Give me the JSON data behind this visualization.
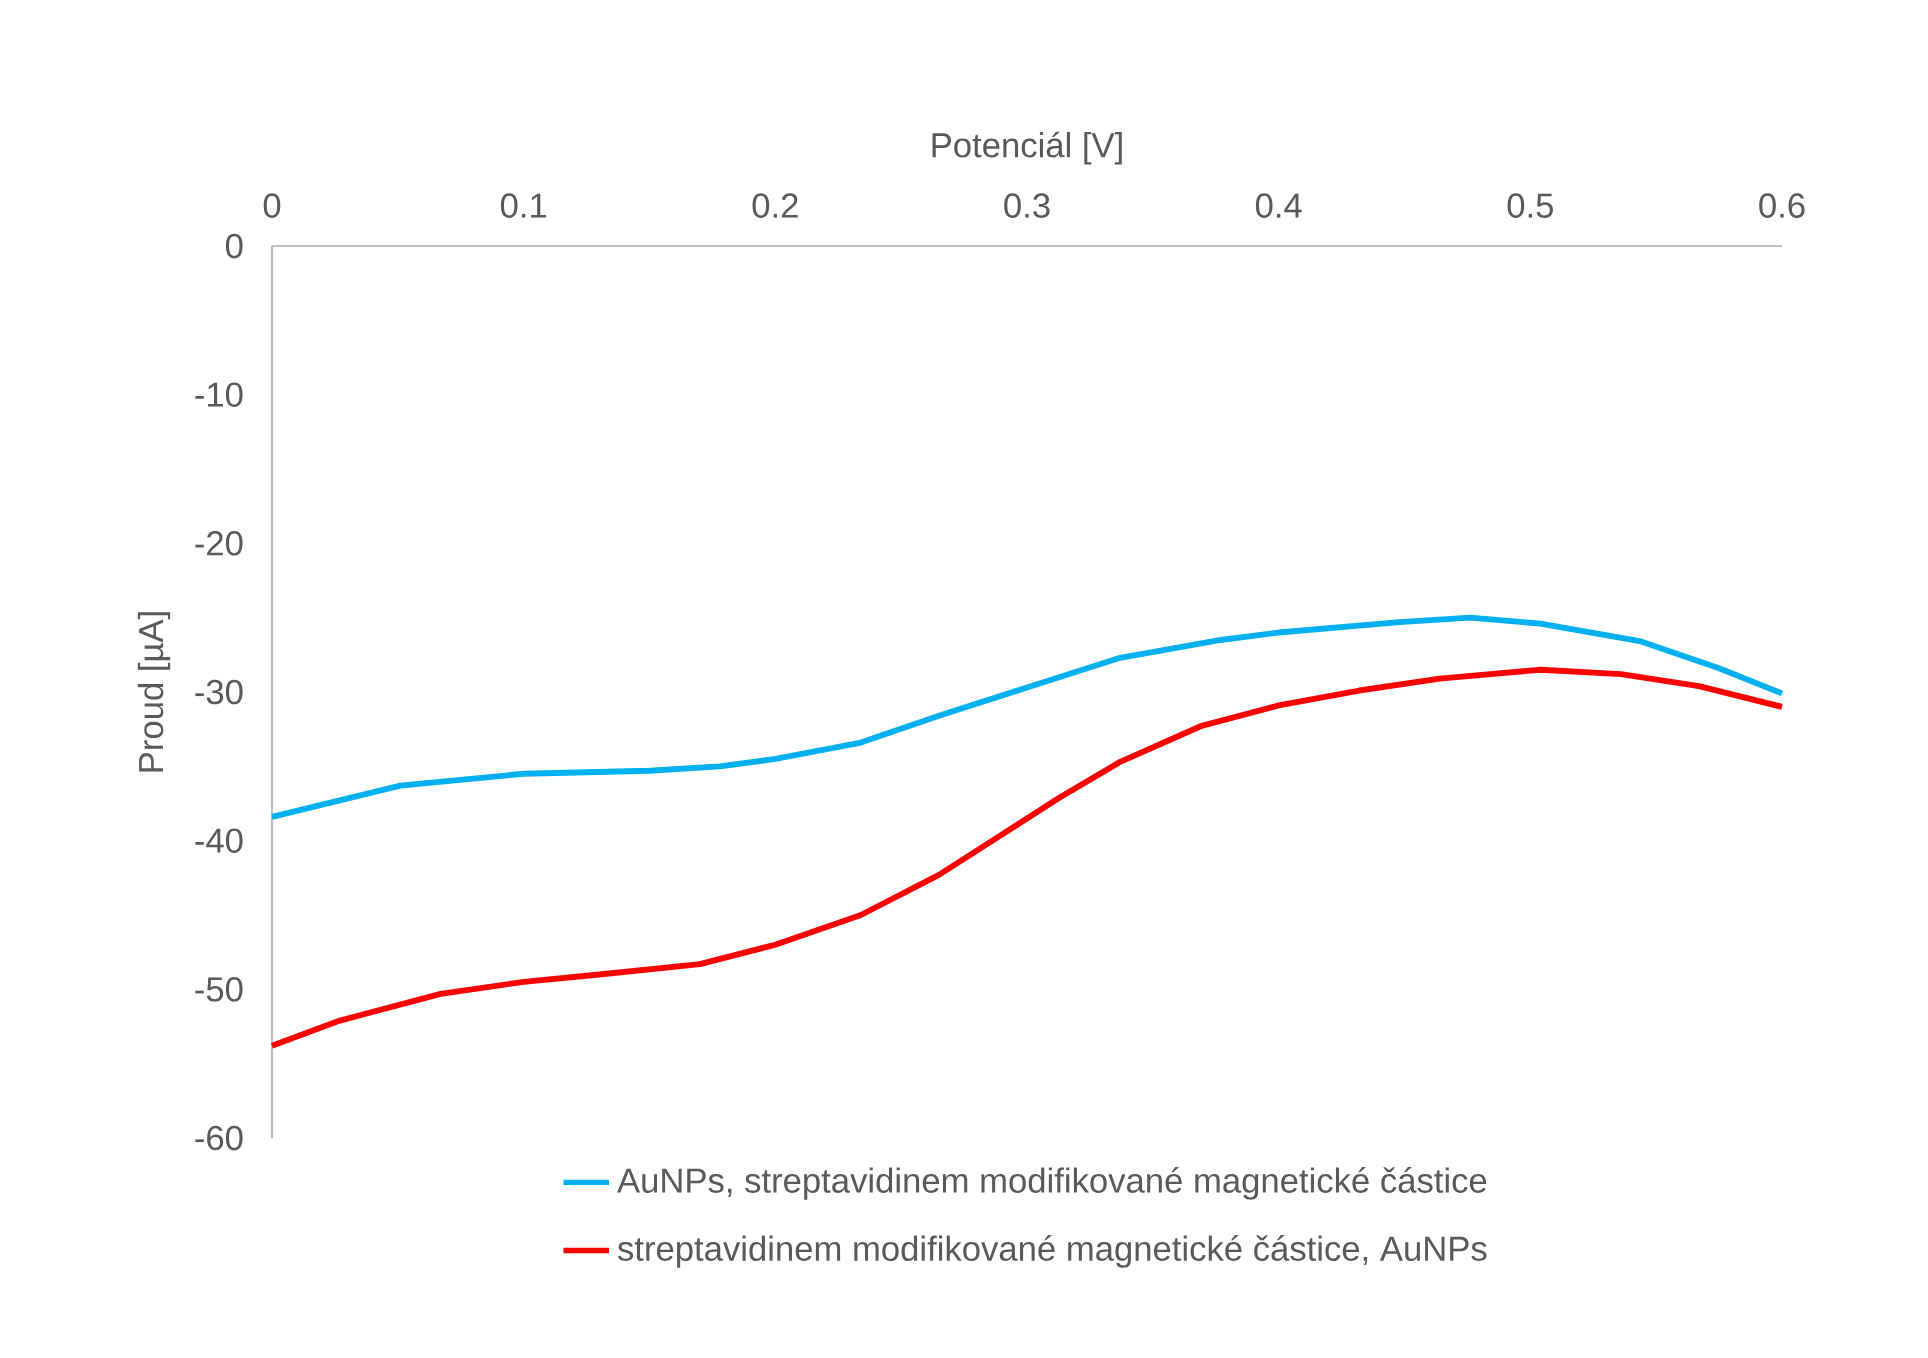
{
  "chart_data": {
    "type": "line",
    "xlabel": "Potenciál [V]",
    "ylabel": "Proud [µA]",
    "xlim": [
      0,
      0.6
    ],
    "xticks": [
      0,
      0.1,
      0.2,
      0.3,
      0.4,
      0.5,
      0.6
    ],
    "ylim": [
      -60,
      0
    ],
    "yticks": [
      0,
      -10,
      -20,
      -30,
      -40,
      -50,
      -60
    ],
    "legend": "bottom",
    "series": [
      {
        "name": "AuNPs, streptavidinem modifikované magnetické částice",
        "color": "#00b0f0",
        "x": [
          0,
          0.051,
          0.1,
          0.15,
          0.178,
          0.2,
          0.234,
          0.265,
          0.3,
          0.337,
          0.377,
          0.4,
          0.448,
          0.476,
          0.504,
          0.544,
          0.575,
          0.6
        ],
        "values": [
          -38.4,
          -36.3,
          -35.5,
          -35.3,
          -35.0,
          -34.5,
          -33.4,
          -31.6,
          -29.7,
          -27.7,
          -26.5,
          -26.0,
          -25.3,
          -25.0,
          -25.4,
          -26.6,
          -28.4,
          -30.1
        ]
      },
      {
        "name": "streptavidinem modifikované magnetické částice, AuNPs",
        "color": "#ff0000",
        "x": [
          0,
          0.027,
          0.067,
          0.1,
          0.13,
          0.17,
          0.2,
          0.234,
          0.265,
          0.289,
          0.313,
          0.337,
          0.369,
          0.4,
          0.432,
          0.464,
          0.504,
          0.536,
          0.567,
          0.6
        ],
        "values": [
          -53.8,
          -52.1,
          -50.3,
          -49.5,
          -49.0,
          -48.3,
          -47.0,
          -45.0,
          -42.3,
          -39.7,
          -37.1,
          -34.7,
          -32.3,
          -30.9,
          -29.9,
          -29.1,
          -28.5,
          -28.8,
          -29.6,
          -31.0
        ]
      }
    ]
  }
}
